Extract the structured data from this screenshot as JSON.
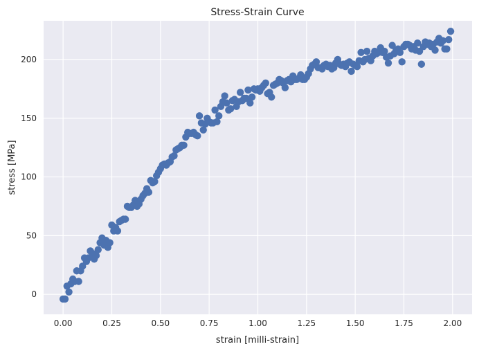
{
  "chart_data": {
    "type": "scatter",
    "title": "Stress-Strain Curve",
    "xlabel": "strain [milli-strain]",
    "ylabel": "stress [MPa]",
    "xlim": [
      -0.1,
      2.1
    ],
    "ylim": [
      -17,
      233
    ],
    "xticks": [
      "0.00",
      "0.25",
      "0.50",
      "0.75",
      "1.00",
      "1.25",
      "1.50",
      "1.75",
      "2.00"
    ],
    "yticks": [
      "0",
      "50",
      "100",
      "150",
      "200"
    ],
    "grid": true,
    "marker_color": "#4c72b0",
    "background_color": "#eaeaf2",
    "x": [
      0.0,
      0.01,
      0.02,
      0.03,
      0.04,
      0.05,
      0.06,
      0.07,
      0.08,
      0.09,
      0.1,
      0.11,
      0.12,
      0.13,
      0.14,
      0.15,
      0.16,
      0.17,
      0.18,
      0.19,
      0.2,
      0.21,
      0.22,
      0.23,
      0.24,
      0.25,
      0.26,
      0.27,
      0.28,
      0.29,
      0.3,
      0.31,
      0.32,
      0.33,
      0.34,
      0.35,
      0.36,
      0.37,
      0.38,
      0.39,
      0.4,
      0.41,
      0.42,
      0.43,
      0.44,
      0.45,
      0.46,
      0.47,
      0.48,
      0.49,
      0.5,
      0.51,
      0.52,
      0.53,
      0.54,
      0.55,
      0.56,
      0.57,
      0.58,
      0.59,
      0.6,
      0.61,
      0.62,
      0.63,
      0.64,
      0.65,
      0.66,
      0.67,
      0.68,
      0.69,
      0.7,
      0.71,
      0.72,
      0.73,
      0.74,
      0.75,
      0.76,
      0.77,
      0.78,
      0.79,
      0.8,
      0.81,
      0.82,
      0.83,
      0.84,
      0.85,
      0.86,
      0.87,
      0.88,
      0.89,
      0.9,
      0.91,
      0.92,
      0.93,
      0.94,
      0.95,
      0.96,
      0.97,
      0.98,
      0.99,
      1.0,
      1.01,
      1.02,
      1.03,
      1.04,
      1.05,
      1.06,
      1.07,
      1.08,
      1.09,
      1.1,
      1.11,
      1.12,
      1.13,
      1.14,
      1.15,
      1.16,
      1.17,
      1.18,
      1.19,
      1.2,
      1.21,
      1.22,
      1.23,
      1.24,
      1.25,
      1.26,
      1.27,
      1.28,
      1.29,
      1.3,
      1.31,
      1.32,
      1.33,
      1.34,
      1.35,
      1.36,
      1.37,
      1.38,
      1.39,
      1.4,
      1.41,
      1.42,
      1.43,
      1.44,
      1.45,
      1.46,
      1.47,
      1.48,
      1.49,
      1.5,
      1.51,
      1.52,
      1.53,
      1.54,
      1.55,
      1.56,
      1.57,
      1.58,
      1.59,
      1.6,
      1.61,
      1.62,
      1.63,
      1.64,
      1.65,
      1.66,
      1.67,
      1.68,
      1.69,
      1.7,
      1.71,
      1.72,
      1.73,
      1.74,
      1.75,
      1.76,
      1.77,
      1.78,
      1.79,
      1.8,
      1.81,
      1.82,
      1.83,
      1.84,
      1.85,
      1.86,
      1.87,
      1.88,
      1.89,
      1.9,
      1.91,
      1.92,
      1.93,
      1.94,
      1.95,
      1.96,
      1.97,
      1.98,
      1.99
    ],
    "y": [
      -4,
      -4,
      7,
      2,
      9,
      13,
      11,
      20,
      11,
      20,
      24,
      31,
      28,
      31,
      37,
      35,
      30,
      33,
      38,
      44,
      48,
      42,
      46,
      40,
      44,
      59,
      54,
      57,
      54,
      62,
      63,
      64,
      64,
      75,
      74,
      74,
      76,
      80,
      75,
      77,
      81,
      84,
      86,
      90,
      87,
      97,
      95,
      96,
      101,
      104,
      107,
      110,
      111,
      110,
      112,
      113,
      117,
      118,
      123,
      124,
      125,
      127,
      127,
      134,
      138,
      137,
      137,
      138,
      136,
      135,
      152,
      146,
      140,
      145,
      150,
      147,
      146,
      146,
      157,
      147,
      152,
      160,
      164,
      169,
      163,
      157,
      158,
      165,
      166,
      160,
      164,
      172,
      165,
      167,
      167,
      174,
      163,
      168,
      175,
      174,
      175,
      173,
      176,
      178,
      180,
      171,
      172,
      168,
      178,
      179,
      180,
      183,
      182,
      180,
      176,
      182,
      183,
      181,
      186,
      183,
      183,
      184,
      187,
      183,
      183,
      185,
      188,
      192,
      195,
      196,
      198,
      193,
      193,
      192,
      195,
      196,
      194,
      195,
      192,
      193,
      197,
      200,
      196,
      195,
      196,
      194,
      197,
      198,
      190,
      196,
      195,
      194,
      199,
      206,
      198,
      200,
      207,
      201,
      199,
      203,
      207,
      205,
      206,
      210,
      206,
      207,
      202,
      197,
      203,
      212,
      205,
      208,
      209,
      206,
      198,
      211,
      213,
      213,
      212,
      209,
      211,
      208,
      214,
      207,
      196,
      211,
      215,
      213,
      214,
      211,
      213,
      208,
      215,
      218,
      214,
      216,
      209,
      209,
      217,
      224
    ],
    "y_adjust": [
      0,
      0,
      0,
      0,
      0,
      0,
      0,
      0,
      0,
      0,
      0,
      0,
      0,
      0,
      0,
      0,
      0,
      0,
      0,
      0,
      0,
      0,
      0,
      0,
      0,
      0,
      0,
      0,
      0,
      0,
      0,
      0,
      0,
      0,
      0,
      0,
      0,
      0,
      0,
      0,
      0,
      0,
      0,
      0,
      0,
      0,
      0,
      0,
      0,
      0,
      0,
      0,
      0,
      0,
      0,
      0,
      0,
      0,
      0,
      0,
      0,
      0,
      0,
      0,
      0,
      0,
      0,
      0,
      0,
      0,
      0,
      0,
      0,
      0,
      0,
      0,
      0,
      0,
      0,
      0,
      0,
      0,
      0,
      0,
      0,
      0,
      0,
      0,
      0,
      0,
      0,
      0,
      0,
      0,
      0,
      0,
      0,
      0,
      0,
      0,
      0,
      0,
      0,
      0,
      0,
      0,
      0,
      0,
      0,
      0,
      0,
      0,
      0,
      0,
      0,
      0,
      0,
      0,
      0,
      0,
      0,
      0,
      0,
      0,
      0,
      0,
      0,
      0,
      0,
      0,
      0,
      0,
      0,
      0,
      0,
      0,
      0,
      0,
      0,
      0,
      0,
      0,
      0,
      0,
      0,
      0,
      0,
      0,
      0,
      0,
      0,
      0,
      0,
      0,
      0,
      0,
      0,
      0,
      0,
      0,
      0,
      0,
      0,
      0,
      0,
      0,
      0,
      0,
      0,
      0,
      0,
      0,
      0,
      0,
      0,
      0,
      0,
      0,
      0,
      0,
      0,
      0,
      0,
      0,
      0,
      0,
      0,
      0,
      0,
      0,
      0,
      0,
      0,
      0,
      0,
      0,
      0,
      0,
      0,
      0
    ]
  }
}
